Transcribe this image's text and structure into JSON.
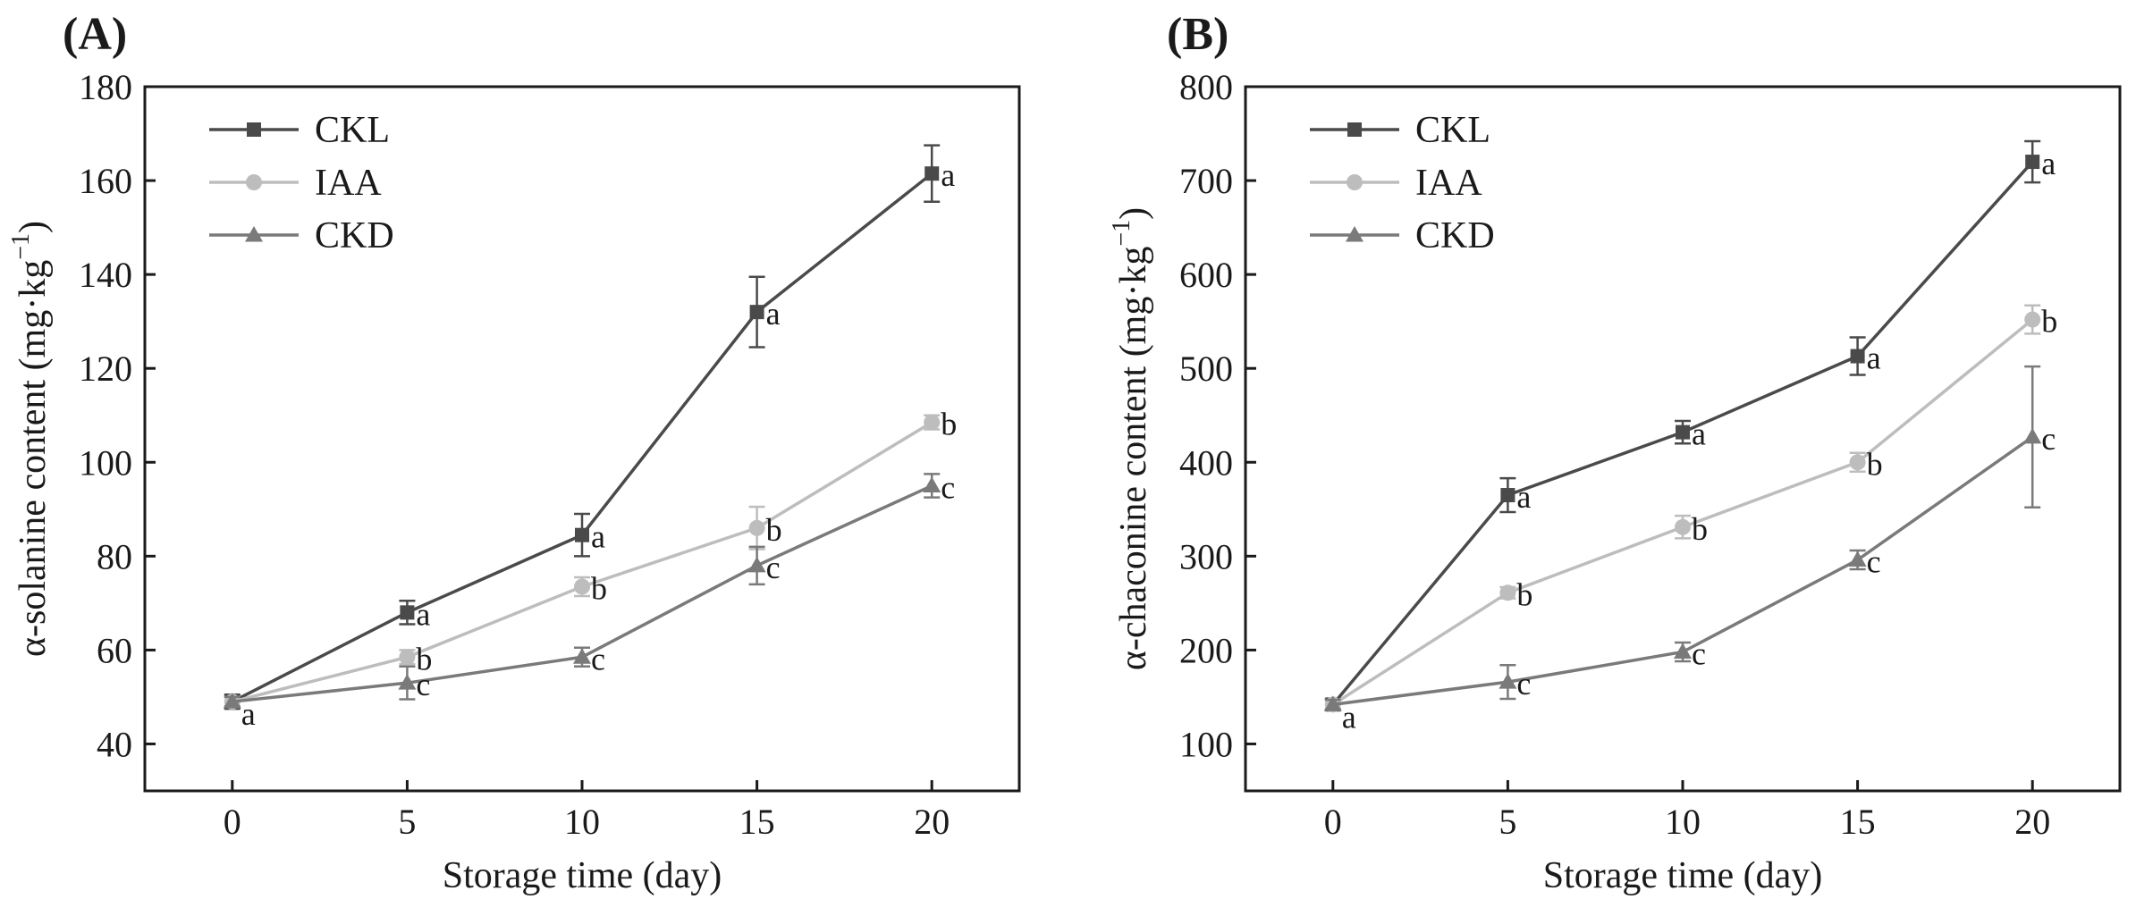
{
  "chart_data": [
    {
      "panel": "(A)",
      "type": "line",
      "xlabel": "Storage time (day)",
      "ylabel": "α-solanine content (mg·kg",
      "ylabel_sup": "−1",
      "ylabel_close": ")",
      "xlim": [
        -2.5,
        22.5
      ],
      "ylim": [
        30,
        180
      ],
      "xticks": [
        0,
        5,
        10,
        15,
        20
      ],
      "yticks": [
        40,
        60,
        80,
        100,
        120,
        140,
        160,
        180
      ],
      "legend_position": "top-left",
      "grid": false,
      "x": [
        0,
        5,
        10,
        15,
        20
      ],
      "series": [
        {
          "name": "CKL",
          "marker": "square",
          "color": "#4a4a4a",
          "values": [
            49,
            68,
            84.5,
            132,
            161.5
          ],
          "errors": [
            1.5,
            2.5,
            4.5,
            7.5,
            6
          ],
          "labels": [
            "a",
            "a",
            "a",
            "a",
            "a"
          ]
        },
        {
          "name": "IAA",
          "marker": "circle",
          "color": "#bdbdbd",
          "values": [
            49,
            58.5,
            73.5,
            86,
            108.5
          ],
          "errors": [
            1,
            1.5,
            2,
            4.5,
            1.5
          ],
          "labels": [
            "",
            "b",
            "b",
            "b",
            "b"
          ]
        },
        {
          "name": "CKD",
          "marker": "triangle",
          "color": "#7a7a7a",
          "values": [
            49,
            53,
            58.5,
            78,
            95
          ],
          "errors": [
            1,
            3.5,
            2,
            4,
            2.5
          ],
          "labels": [
            "",
            "c",
            "c",
            "c",
            "c"
          ]
        }
      ]
    },
    {
      "panel": "(B)",
      "type": "line",
      "xlabel": "Storage time (day)",
      "ylabel": "α-chaconine content (mg·kg",
      "ylabel_sup": "−1",
      "ylabel_close": ")",
      "xlim": [
        -2.5,
        22.5
      ],
      "ylim": [
        50,
        800
      ],
      "xticks": [
        0,
        5,
        10,
        15,
        20
      ],
      "yticks": [
        100,
        200,
        300,
        400,
        500,
        600,
        700,
        800
      ],
      "legend_position": "top-left",
      "grid": false,
      "x": [
        0,
        5,
        10,
        15,
        20
      ],
      "series": [
        {
          "name": "CKL",
          "marker": "square",
          "color": "#4a4a4a",
          "values": [
            142,
            365,
            432,
            513,
            720
          ],
          "errors": [
            6,
            18,
            12,
            20,
            22
          ],
          "labels": [
            "a",
            "a",
            "a",
            "a",
            "a"
          ]
        },
        {
          "name": "IAA",
          "marker": "circle",
          "color": "#bdbdbd",
          "values": [
            142,
            261,
            331,
            400,
            552
          ],
          "errors": [
            5,
            6,
            12,
            10,
            15
          ],
          "labels": [
            "",
            "b",
            "b",
            "b",
            "b"
          ]
        },
        {
          "name": "CKD",
          "marker": "triangle",
          "color": "#7a7a7a",
          "values": [
            142,
            166,
            198,
            296,
            427
          ],
          "errors": [
            5,
            18,
            10,
            10,
            75
          ],
          "labels": [
            "",
            "c",
            "c",
            "c",
            "c"
          ]
        }
      ]
    }
  ]
}
